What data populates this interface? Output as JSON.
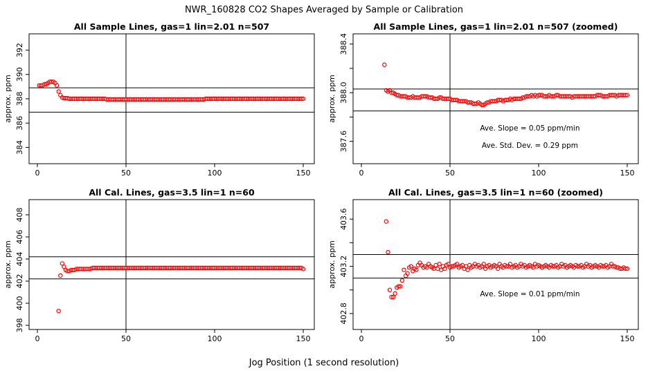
{
  "figure_title": "NWR_160828  CO2 Shapes Averaged by Sample or Calibration",
  "figure_xlabel": "Jog Position (1 second resolution)",
  "colors": {
    "points": "#ff0000",
    "axes": "#000000"
  },
  "chart_data": [
    {
      "type": "scatter",
      "title": "All Sample Lines, gas=1 lin=2.01 n=507",
      "xlabel": "",
      "ylabel": "approx. ppm",
      "xlim": [
        0,
        150
      ],
      "ylim": [
        383,
        393
      ],
      "xticks": [
        0,
        50,
        100,
        150
      ],
      "yticks": [
        384,
        386,
        388,
        390,
        392
      ],
      "hlines": [
        388.9,
        386.9
      ],
      "vline": 50,
      "annotations": [],
      "x": [
        1,
        2,
        3,
        4,
        5,
        6,
        7,
        8,
        9,
        10,
        11,
        12,
        13,
        14,
        15,
        16,
        17,
        18,
        19,
        20,
        21,
        22,
        23,
        24,
        25,
        26,
        27,
        28,
        29,
        30,
        31,
        32,
        33,
        34,
        35,
        36,
        37,
        38,
        39,
        40,
        41,
        42,
        43,
        44,
        45,
        46,
        47,
        48,
        49,
        50,
        51,
        52,
        53,
        54,
        55,
        56,
        57,
        58,
        59,
        60,
        61,
        62,
        63,
        64,
        65,
        66,
        67,
        68,
        69,
        70,
        71,
        72,
        73,
        74,
        75,
        76,
        77,
        78,
        79,
        80,
        81,
        82,
        83,
        84,
        85,
        86,
        87,
        88,
        89,
        90,
        91,
        92,
        93,
        94,
        95,
        96,
        97,
        98,
        99,
        100,
        101,
        102,
        103,
        104,
        105,
        106,
        107,
        108,
        109,
        110,
        111,
        112,
        113,
        114,
        115,
        116,
        117,
        118,
        119,
        120,
        121,
        122,
        123,
        124,
        125,
        126,
        127,
        128,
        129,
        130,
        131,
        132,
        133,
        134,
        135,
        136,
        137,
        138,
        139,
        140,
        141,
        142,
        143,
        144,
        145,
        146,
        147,
        148,
        149,
        150
      ],
      "y": [
        389.1,
        389.1,
        389.1,
        389.2,
        389.2,
        389.3,
        389.4,
        389.4,
        389.4,
        389.3,
        389.1,
        388.6,
        388.3,
        388.1,
        388.05,
        388.05,
        388.05,
        388.0,
        388.0,
        388.0,
        388.0,
        388.0,
        388.0,
        388.0,
        388.0,
        388.0,
        388.0,
        388.0,
        388.0,
        388.0,
        388.0,
        388.0,
        388.0,
        388.0,
        388.0,
        388.0,
        388.0,
        388.0,
        387.95,
        387.95,
        387.95,
        387.95,
        387.95,
        387.95,
        387.95,
        387.95,
        387.95,
        387.95,
        387.95,
        387.95,
        387.95,
        387.95,
        387.95,
        387.95,
        387.95,
        387.95,
        387.95,
        387.95,
        387.95,
        387.95,
        387.95,
        387.95,
        387.95,
        387.95,
        387.95,
        387.95,
        387.95,
        387.95,
        387.95,
        387.95,
        387.95,
        387.95,
        387.95,
        387.95,
        387.95,
        387.95,
        387.95,
        387.95,
        387.95,
        387.95,
        387.95,
        387.95,
        387.95,
        387.95,
        387.95,
        387.95,
        387.95,
        387.95,
        387.95,
        387.95,
        387.95,
        387.95,
        387.95,
        387.95,
        388.0,
        388.0,
        388.0,
        388.0,
        388.0,
        388.0,
        388.0,
        388.0,
        388.0,
        388.0,
        388.0,
        388.0,
        388.0,
        388.0,
        388.0,
        388.0,
        388.0,
        388.0,
        388.0,
        388.0,
        388.0,
        388.0,
        388.0,
        388.0,
        388.0,
        388.0,
        388.0,
        388.0,
        388.0,
        388.0,
        388.0,
        388.0,
        388.0,
        388.0,
        388.0,
        388.0,
        388.0,
        388.0,
        388.0,
        388.0,
        388.0,
        388.0,
        388.0,
        388.0,
        388.0,
        388.0,
        388.0,
        388.0,
        388.0,
        388.0,
        388.0,
        388.0,
        388.0,
        388.0,
        388.0,
        388.0
      ]
    },
    {
      "type": "scatter",
      "title": "All Sample Lines, gas=1 lin=2.01 n=507 (zoomed)",
      "xlabel": "",
      "ylabel": "approx. ppm",
      "xlim": [
        0,
        150
      ],
      "ylim": [
        387.45,
        388.45
      ],
      "xticks": [
        0,
        50,
        100,
        150
      ],
      "yticks": [
        387.6,
        387.8,
        388.0,
        388.2,
        388.4
      ],
      "ytick_labels": [
        "387.6",
        "",
        "388.0",
        "",
        "388.4"
      ],
      "hlines": [
        388.03,
        387.85
      ],
      "vline": 50,
      "annotations": [
        "Ave. Slope =  0.05  ppm/min",
        "Ave. Std. Dev. =  0.29  ppm"
      ],
      "x": [
        13,
        14,
        15,
        16,
        17,
        18,
        19,
        20,
        21,
        22,
        23,
        24,
        25,
        26,
        27,
        28,
        29,
        30,
        31,
        32,
        33,
        34,
        35,
        36,
        37,
        38,
        39,
        40,
        41,
        42,
        43,
        44,
        45,
        46,
        47,
        48,
        49,
        50,
        51,
        52,
        53,
        54,
        55,
        56,
        57,
        58,
        59,
        60,
        61,
        62,
        63,
        64,
        65,
        66,
        67,
        68,
        69,
        70,
        71,
        72,
        73,
        74,
        75,
        76,
        77,
        78,
        79,
        80,
        81,
        82,
        83,
        84,
        85,
        86,
        87,
        88,
        89,
        90,
        91,
        92,
        93,
        94,
        95,
        96,
        97,
        98,
        99,
        100,
        101,
        102,
        103,
        104,
        105,
        106,
        107,
        108,
        109,
        110,
        111,
        112,
        113,
        114,
        115,
        116,
        117,
        118,
        119,
        120,
        121,
        122,
        123,
        124,
        125,
        126,
        127,
        128,
        129,
        130,
        131,
        132,
        133,
        134,
        135,
        136,
        137,
        138,
        139,
        140,
        141,
        142,
        143,
        144,
        145,
        146,
        147,
        148,
        149,
        150
      ],
      "y": [
        388.23,
        388.02,
        388.01,
        388.02,
        388.0,
        388.0,
        387.99,
        387.98,
        387.98,
        387.97,
        387.97,
        387.97,
        387.97,
        387.96,
        387.96,
        387.96,
        387.97,
        387.96,
        387.96,
        387.96,
        387.96,
        387.97,
        387.97,
        387.97,
        387.97,
        387.96,
        387.96,
        387.96,
        387.95,
        387.95,
        387.95,
        387.96,
        387.96,
        387.95,
        387.95,
        387.95,
        387.95,
        387.95,
        387.94,
        387.94,
        387.94,
        387.94,
        387.93,
        387.93,
        387.93,
        387.93,
        387.93,
        387.92,
        387.92,
        387.92,
        387.91,
        387.91,
        387.91,
        387.92,
        387.91,
        387.9,
        387.9,
        387.91,
        387.92,
        387.92,
        387.93,
        387.93,
        387.93,
        387.93,
        387.94,
        387.94,
        387.94,
        387.93,
        387.94,
        387.94,
        387.94,
        387.95,
        387.94,
        387.95,
        387.95,
        387.95,
        387.95,
        387.95,
        387.96,
        387.96,
        387.97,
        387.97,
        387.97,
        387.98,
        387.97,
        387.98,
        387.97,
        387.98,
        387.98,
        387.98,
        387.97,
        387.97,
        387.97,
        387.98,
        387.97,
        387.97,
        387.97,
        387.98,
        387.98,
        387.97,
        387.97,
        387.97,
        387.97,
        387.97,
        387.97,
        387.97,
        387.96,
        387.97,
        387.97,
        387.97,
        387.97,
        387.97,
        387.97,
        387.97,
        387.97,
        387.97,
        387.97,
        387.97,
        387.97,
        387.97,
        387.98,
        387.98,
        387.98,
        387.97,
        387.97,
        387.97,
        387.97,
        387.98,
        387.98,
        387.98,
        387.98,
        387.97,
        387.98,
        387.98,
        387.98,
        387.98,
        387.98,
        387.98
      ]
    },
    {
      "type": "scatter",
      "title": "All Cal. Lines, gas=3.5 lin=1 n=60",
      "xlabel": "",
      "ylabel": "approx. ppm",
      "xlim": [
        0,
        150
      ],
      "ylim": [
        398,
        409
      ],
      "xticks": [
        0,
        50,
        100,
        150
      ],
      "yticks": [
        398,
        400,
        402,
        404,
        406,
        408
      ],
      "hlines": [
        404.2,
        402.2
      ],
      "vline": 50,
      "annotations": [],
      "x": [
        12,
        13,
        14,
        15,
        16,
        17,
        18,
        19,
        20,
        21,
        22,
        23,
        24,
        25,
        26,
        27,
        28,
        29,
        30,
        31,
        32,
        33,
        34,
        35,
        36,
        37,
        38,
        39,
        40,
        41,
        42,
        43,
        44,
        45,
        46,
        47,
        48,
        49,
        50,
        51,
        52,
        53,
        54,
        55,
        56,
        57,
        58,
        59,
        60,
        61,
        62,
        63,
        64,
        65,
        66,
        67,
        68,
        69,
        70,
        71,
        72,
        73,
        74,
        75,
        76,
        77,
        78,
        79,
        80,
        81,
        82,
        83,
        84,
        85,
        86,
        87,
        88,
        89,
        90,
        91,
        92,
        93,
        94,
        95,
        96,
        97,
        98,
        99,
        100,
        101,
        102,
        103,
        104,
        105,
        106,
        107,
        108,
        109,
        110,
        111,
        112,
        113,
        114,
        115,
        116,
        117,
        118,
        119,
        120,
        121,
        122,
        123,
        124,
        125,
        126,
        127,
        128,
        129,
        130,
        131,
        132,
        133,
        134,
        135,
        136,
        137,
        138,
        139,
        140,
        141,
        142,
        143,
        144,
        145,
        146,
        147,
        148,
        149,
        150
      ],
      "y": [
        399.3,
        402.5,
        403.6,
        403.3,
        403.0,
        402.9,
        402.9,
        403.0,
        403.0,
        403.0,
        403.1,
        403.1,
        403.1,
        403.1,
        403.1,
        403.1,
        403.1,
        403.1,
        403.1,
        403.2,
        403.2,
        403.2,
        403.2,
        403.2,
        403.2,
        403.2,
        403.2,
        403.2,
        403.2,
        403.2,
        403.2,
        403.2,
        403.2,
        403.2,
        403.2,
        403.2,
        403.2,
        403.2,
        403.2,
        403.2,
        403.2,
        403.2,
        403.2,
        403.2,
        403.2,
        403.2,
        403.2,
        403.2,
        403.2,
        403.2,
        403.2,
        403.2,
        403.2,
        403.2,
        403.2,
        403.2,
        403.2,
        403.2,
        403.2,
        403.2,
        403.2,
        403.2,
        403.2,
        403.2,
        403.2,
        403.2,
        403.2,
        403.2,
        403.2,
        403.2,
        403.2,
        403.2,
        403.2,
        403.2,
        403.2,
        403.2,
        403.2,
        403.2,
        403.2,
        403.2,
        403.2,
        403.2,
        403.2,
        403.2,
        403.2,
        403.2,
        403.2,
        403.2,
        403.2,
        403.2,
        403.2,
        403.2,
        403.2,
        403.2,
        403.2,
        403.2,
        403.2,
        403.2,
        403.2,
        403.2,
        403.2,
        403.2,
        403.2,
        403.2,
        403.2,
        403.2,
        403.2,
        403.2,
        403.2,
        403.2,
        403.2,
        403.2,
        403.2,
        403.2,
        403.2,
        403.2,
        403.2,
        403.2,
        403.2,
        403.2,
        403.2,
        403.2,
        403.2,
        403.2,
        403.2,
        403.2,
        403.2,
        403.2,
        403.2,
        403.2,
        403.2,
        403.2,
        403.2,
        403.2,
        403.2,
        403.2,
        403.2,
        403.2,
        403.1
      ]
    },
    {
      "type": "scatter",
      "title": "All Cal. Lines, gas=3.5 lin=1 n=60 (zoomed)",
      "xlabel": "",
      "ylabel": "approx. ppm",
      "xlim": [
        0,
        150
      ],
      "ylim": [
        402.7,
        403.73
      ],
      "xticks": [
        0,
        50,
        100,
        150
      ],
      "yticks": [
        402.8,
        403.0,
        403.2,
        403.4,
        403.6
      ],
      "ytick_labels": [
        "402.8",
        "",
        "403.2",
        "",
        "403.6"
      ],
      "hlines": [
        403.3,
        403.1
      ],
      "vline": 50,
      "annotations": [
        "Ave. Slope =  0.01  ppm/min"
      ],
      "x": [
        14,
        15,
        16,
        17,
        18,
        19,
        20,
        21,
        22,
        23,
        24,
        25,
        26,
        27,
        28,
        29,
        30,
        31,
        32,
        33,
        34,
        35,
        36,
        37,
        38,
        39,
        40,
        41,
        42,
        43,
        44,
        45,
        46,
        47,
        48,
        49,
        50,
        51,
        52,
        53,
        54,
        55,
        56,
        57,
        58,
        59,
        60,
        61,
        62,
        63,
        64,
        65,
        66,
        67,
        68,
        69,
        70,
        71,
        72,
        73,
        74,
        75,
        76,
        77,
        78,
        79,
        80,
        81,
        82,
        83,
        84,
        85,
        86,
        87,
        88,
        89,
        90,
        91,
        92,
        93,
        94,
        95,
        96,
        97,
        98,
        99,
        100,
        101,
        102,
        103,
        104,
        105,
        106,
        107,
        108,
        109,
        110,
        111,
        112,
        113,
        114,
        115,
        116,
        117,
        118,
        119,
        120,
        121,
        122,
        123,
        124,
        125,
        126,
        127,
        128,
        129,
        130,
        131,
        132,
        133,
        134,
        135,
        136,
        137,
        138,
        139,
        140,
        141,
        142,
        143,
        144,
        145,
        146,
        147,
        148,
        149,
        150
      ],
      "y": [
        403.58,
        403.32,
        403.0,
        402.94,
        402.94,
        402.97,
        403.02,
        403.03,
        403.03,
        403.08,
        403.17,
        403.12,
        403.14,
        403.19,
        403.2,
        403.16,
        403.18,
        403.17,
        403.21,
        403.23,
        403.21,
        403.19,
        403.2,
        403.19,
        403.22,
        403.2,
        403.19,
        403.18,
        403.21,
        403.18,
        403.22,
        403.17,
        403.2,
        403.18,
        403.21,
        403.22,
        403.19,
        403.2,
        403.2,
        403.21,
        403.22,
        403.19,
        403.2,
        403.21,
        403.18,
        403.2,
        403.17,
        403.21,
        403.19,
        403.2,
        403.22,
        403.2,
        403.21,
        403.19,
        403.2,
        403.22,
        403.18,
        403.2,
        403.21,
        403.19,
        403.2,
        403.21,
        403.2,
        403.18,
        403.22,
        403.2,
        403.19,
        403.21,
        403.2,
        403.2,
        403.22,
        403.19,
        403.2,
        403.21,
        403.19,
        403.2,
        403.22,
        403.2,
        403.21,
        403.19,
        403.2,
        403.21,
        403.2,
        403.19,
        403.22,
        403.2,
        403.21,
        403.2,
        403.19,
        403.2,
        403.21,
        403.2,
        403.19,
        403.21,
        403.2,
        403.2,
        403.21,
        403.19,
        403.2,
        403.22,
        403.2,
        403.21,
        403.19,
        403.2,
        403.21,
        403.2,
        403.19,
        403.21,
        403.2,
        403.2,
        403.21,
        403.19,
        403.2,
        403.22,
        403.2,
        403.21,
        403.19,
        403.2,
        403.21,
        403.2,
        403.19,
        403.21,
        403.2,
        403.2,
        403.21,
        403.19,
        403.2,
        403.22,
        403.2,
        403.2,
        403.19,
        403.19,
        403.18,
        403.18,
        403.19,
        403.18,
        403.18
      ]
    }
  ]
}
